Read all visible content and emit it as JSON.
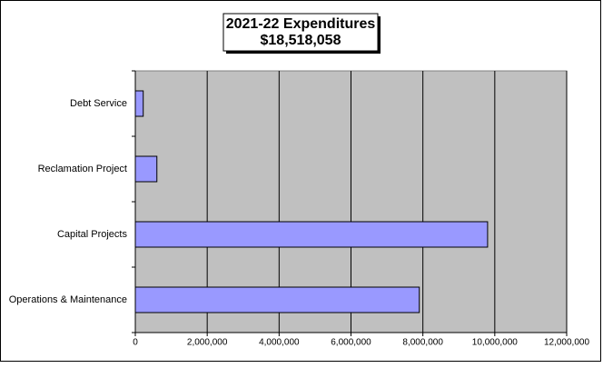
{
  "chart_data": {
    "type": "hbar",
    "title": "2021-22 Expenditures",
    "subtitle": "$18,518,058",
    "categories": [
      "Debt Service",
      "Reclamation Project",
      "Capital Projects",
      "Operations & Maintenance"
    ],
    "values": [
      220000,
      600000,
      9800000,
      7900000
    ],
    "color": "#9999ff",
    "xlim": [
      0,
      12000000
    ],
    "xticks": [
      0,
      {
        "value": 2000000,
        "label": "2,000,000"
      },
      {
        "value": 4000000,
        "label": "4,000,000"
      },
      {
        "value": 6000000,
        "label": "6,000,000"
      },
      {
        "value": 8000000,
        "label": "8,000,000"
      },
      {
        "value": 10000000,
        "label": "10,000,000"
      },
      {
        "value": 12000000,
        "label": "12,000,000"
      }
    ],
    "grid": true
  }
}
